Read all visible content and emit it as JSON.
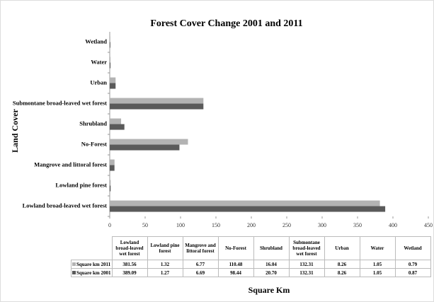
{
  "chart_data": {
    "type": "bar",
    "orientation": "horizontal",
    "title": "Forest Cover Change 2001 and 2011",
    "y_label": "Land Cover",
    "x_label": "Square Km",
    "categories": [
      "Lowland broad-leaved wet forest",
      "Lowland pine forest",
      "Mangrove and littoral forest",
      "No-Forest",
      "Shrubland",
      "Submontane broad-leaved wet forest",
      "Urban",
      "Water",
      "Wetland"
    ],
    "series": [
      {
        "name": "Square km 2011",
        "color": "#b3b3b3",
        "values": [
          381.56,
          1.32,
          6.77,
          110.48,
          16.04,
          132.31,
          8.26,
          1.05,
          0.79
        ],
        "value_labels": [
          "381.56",
          "1.32",
          "6.77",
          "110.48",
          "16.04",
          "132.31",
          "8.26",
          "1.05",
          "0.79"
        ]
      },
      {
        "name": "Square km 2001",
        "color": "#5a5a5a",
        "values": [
          389.09,
          1.27,
          6.69,
          98.44,
          20.7,
          132.31,
          8.26,
          1.05,
          0.87
        ],
        "value_labels": [
          "389.09",
          "1.27",
          "6.69",
          "98.44",
          "20.70",
          "132.31",
          "8.26",
          "1.05",
          "0.87"
        ]
      }
    ],
    "xlim": [
      0,
      450
    ],
    "xticks": [
      0,
      50,
      100,
      150,
      200,
      250,
      300,
      350,
      400,
      450
    ],
    "grid": false
  }
}
